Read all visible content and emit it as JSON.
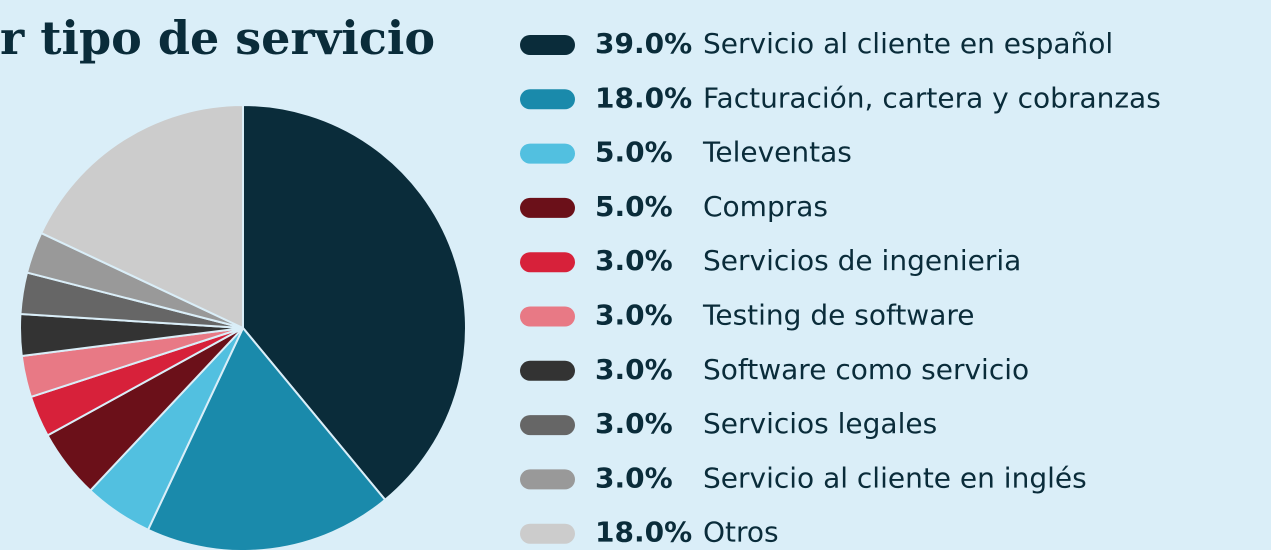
{
  "chart_data": {
    "type": "pie",
    "title": "r tipo de servicio",
    "categories": [
      "Servicio al cliente en español",
      "Facturación, cartera y cobranzas",
      "Televentas",
      "Compras",
      "Servicios de ingenieria",
      "Testing de software",
      "Software como servicio",
      "Servicios legales",
      "Servicio al cliente en inglés",
      "Otros"
    ],
    "values": [
      39,
      18,
      5,
      5,
      3,
      3,
      3,
      3,
      3,
      18
    ],
    "value_labels": [
      "39.0%",
      "18.0%",
      "5.0%",
      "5.0%",
      "3.0%",
      "3.0%",
      "3.0%",
      "3.0%",
      "3.0%",
      "18.0%"
    ],
    "colors": [
      "#0a2c3a",
      "#1a8aab",
      "#52c0e0",
      "#6b1019",
      "#d7213a",
      "#e87985",
      "#333333",
      "#666666",
      "#999999",
      "#cccccc"
    ]
  }
}
